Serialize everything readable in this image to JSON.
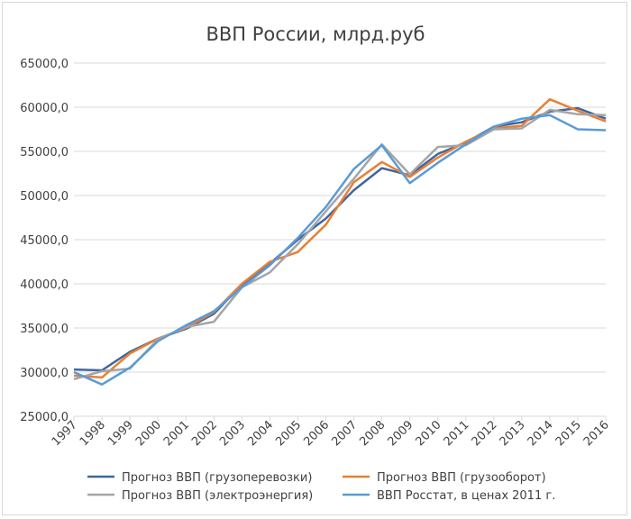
{
  "chart_data": {
    "type": "line",
    "title": "ВВП России, млрд.руб",
    "xlabel": "",
    "ylabel": "",
    "categories": [
      "1997",
      "1998",
      "1999",
      "2000",
      "2001",
      "2002",
      "2003",
      "2004",
      "2005",
      "2006",
      "2007",
      "2008",
      "2009",
      "2010",
      "2011",
      "2012",
      "2013",
      "2014",
      "2015",
      "2016"
    ],
    "ylim": [
      25000,
      65000
    ],
    "yticks": [
      25000,
      30000,
      35000,
      40000,
      45000,
      50000,
      55000,
      60000,
      65000
    ],
    "ytick_labels": [
      "25000,0",
      "30000,0",
      "35000,0",
      "40000,0",
      "45000,0",
      "50000,0",
      "55000,0",
      "60000,0",
      "65000,0"
    ],
    "grid": true,
    "legend_position": "bottom",
    "series": [
      {
        "name": "Прогноз ВВП (грузоперевозки)",
        "color": "#41659e",
        "values": [
          30300,
          30200,
          32300,
          33800,
          34900,
          36600,
          39900,
          42300,
          45000,
          47400,
          50600,
          53100,
          52300,
          54700,
          56000,
          57800,
          58300,
          59500,
          59900,
          58700
        ]
      },
      {
        "name": "Прогноз ВВП (грузооборот)",
        "color": "#e97f36",
        "values": [
          29600,
          29400,
          32100,
          33800,
          35000,
          36800,
          40000,
          42500,
          43600,
          46700,
          51500,
          53800,
          52100,
          54300,
          56100,
          57600,
          57900,
          60900,
          59600,
          58400
        ]
      },
      {
        "name": "Прогноз ВВП (электроэнергия)",
        "color": "#a5a5a5",
        "values": [
          29200,
          30100,
          30400,
          33700,
          35100,
          35700,
          39600,
          41300,
          44500,
          48200,
          51900,
          55800,
          52400,
          55500,
          55700,
          57500,
          57600,
          59700,
          59200,
          59100
        ]
      },
      {
        "name": "ВВП Росстат, в ценах 2011 г.",
        "color": "#5a9bd5",
        "values": [
          30000,
          28600,
          30500,
          33500,
          35300,
          36900,
          39600,
          42100,
          45200,
          48700,
          53000,
          55700,
          51400,
          53700,
          55800,
          57800,
          58700,
          59100,
          57500,
          57400
        ]
      }
    ]
  }
}
